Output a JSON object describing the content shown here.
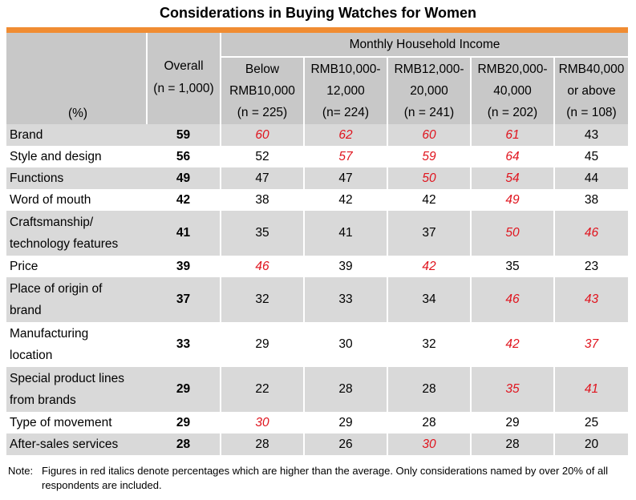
{
  "chart_data": {
    "type": "table",
    "title": "Considerations in Buying Watches for Women",
    "unit_label": "(%)",
    "overall_header": {
      "line1": "Overall",
      "line2": "(n = 1,000)"
    },
    "group_header": "Monthly Household Income",
    "income_columns": [
      {
        "line1": "Below",
        "line2": "RMB10,000",
        "line3": "(n = 225)"
      },
      {
        "line1": "RMB10,000-",
        "line2": "12,000",
        "line3": "(n= 224)"
      },
      {
        "line1": "RMB12,000-",
        "line2": "20,000",
        "line3": "(n = 241)"
      },
      {
        "line1": "RMB20,000-",
        "line2": "40,000",
        "line3": "(n = 202)"
      },
      {
        "line1": "RMB40,000",
        "line2": "or above",
        "line3": "(n = 108)"
      }
    ],
    "rows": [
      {
        "label": [
          "Brand"
        ],
        "overall": "59",
        "values": [
          "60",
          "62",
          "60",
          "61",
          "43"
        ],
        "highlight": [
          true,
          true,
          true,
          true,
          false
        ]
      },
      {
        "label": [
          "Style and design"
        ],
        "overall": "56",
        "values": [
          "52",
          "57",
          "59",
          "64",
          "45"
        ],
        "highlight": [
          false,
          true,
          true,
          true,
          false
        ]
      },
      {
        "label": [
          "Functions"
        ],
        "overall": "49",
        "values": [
          "47",
          "47",
          "50",
          "54",
          "44"
        ],
        "highlight": [
          false,
          false,
          true,
          true,
          false
        ]
      },
      {
        "label": [
          "Word of mouth"
        ],
        "overall": "42",
        "values": [
          "38",
          "42",
          "42",
          "49",
          "38"
        ],
        "highlight": [
          false,
          false,
          false,
          true,
          false
        ]
      },
      {
        "label": [
          "Craftsmanship/",
          "technology features"
        ],
        "overall": "41",
        "values": [
          "35",
          "41",
          "37",
          "50",
          "46"
        ],
        "highlight": [
          false,
          false,
          false,
          true,
          true
        ]
      },
      {
        "label": [
          "Price"
        ],
        "overall": "39",
        "values": [
          "46",
          "39",
          "42",
          "35",
          "23"
        ],
        "highlight": [
          true,
          false,
          true,
          false,
          false
        ]
      },
      {
        "label": [
          "Place of origin of",
          "brand"
        ],
        "overall": "37",
        "values": [
          "32",
          "33",
          "34",
          "46",
          "43"
        ],
        "highlight": [
          false,
          false,
          false,
          true,
          true
        ]
      },
      {
        "label": [
          "Manufacturing",
          "location"
        ],
        "overall": "33",
        "values": [
          "29",
          "30",
          "32",
          "42",
          "37"
        ],
        "highlight": [
          false,
          false,
          false,
          true,
          true
        ]
      },
      {
        "label": [
          "Special product lines",
          "from brands"
        ],
        "overall": "29",
        "values": [
          "22",
          "28",
          "28",
          "35",
          "41"
        ],
        "highlight": [
          false,
          false,
          false,
          true,
          true
        ]
      },
      {
        "label": [
          "Type of movement"
        ],
        "overall": "29",
        "values": [
          "30",
          "29",
          "28",
          "29",
          "25"
        ],
        "highlight": [
          true,
          false,
          false,
          false,
          false
        ]
      },
      {
        "label": [
          "After-sales services"
        ],
        "overall": "28",
        "values": [
          "28",
          "26",
          "30",
          "28",
          "20"
        ],
        "highlight": [
          false,
          false,
          true,
          false,
          false
        ]
      }
    ],
    "note_label": "Note:",
    "note_text": "Figures in red italics denote percentages which are higher than the average.  Only considerations named by over 20% of all respondents are included."
  },
  "colors": {
    "accent_bar": "#f08c32",
    "header_bg": "#c8c8c8",
    "stripe_bg": "#d9d9d9",
    "highlight_text": "#e0141e"
  }
}
